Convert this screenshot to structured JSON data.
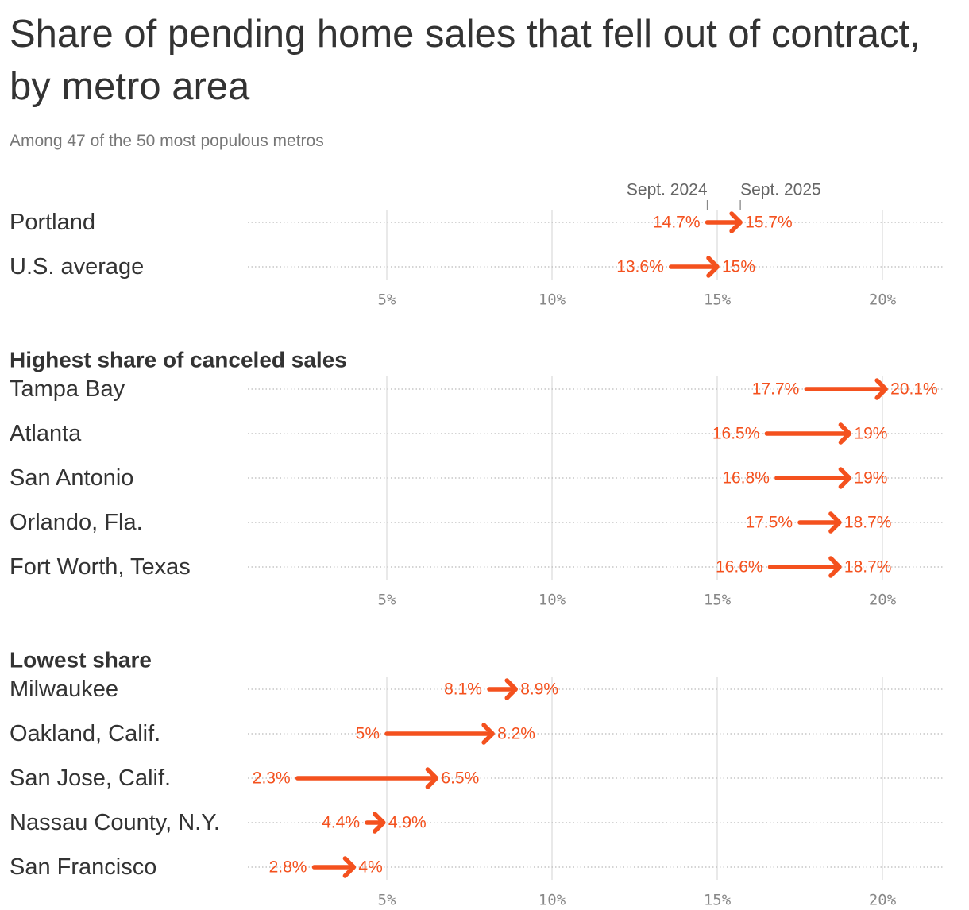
{
  "title": "Share of pending home sales that fell out of contract, by metro area",
  "subtitle": "Among 47 of the 50 most populous metros",
  "colors": {
    "accent": "#f4511e",
    "text": "#333333",
    "muted": "#888888",
    "grid": "#dddddd"
  },
  "chart_data": {
    "type": "arrow",
    "value_unit": "%",
    "xlim": [
      0.8,
      21.8
    ],
    "ticks": [
      5,
      10,
      15,
      20
    ],
    "tick_labels": [
      "5%",
      "10%",
      "15%",
      "20%"
    ],
    "series": [
      {
        "name": "Sept. 2024",
        "role": "start"
      },
      {
        "name": "Sept. 2025",
        "role": "end"
      }
    ],
    "legend": "top, annotated above Portland",
    "sections": [
      {
        "heading": "",
        "rows": [
          {
            "label": "Portland",
            "start": 14.7,
            "end": 15.7,
            "start_label": "14.7%",
            "end_label": "15.7%"
          },
          {
            "label": "U.S. average",
            "start": 13.6,
            "end": 15.0,
            "start_label": "13.6%",
            "end_label": "15%"
          }
        ]
      },
      {
        "heading": "Highest share of canceled sales",
        "rows": [
          {
            "label": "Tampa Bay",
            "start": 17.7,
            "end": 20.1,
            "start_label": "17.7%",
            "end_label": "20.1%"
          },
          {
            "label": "Atlanta",
            "start": 16.5,
            "end": 19.0,
            "start_label": "16.5%",
            "end_label": "19%"
          },
          {
            "label": "San Antonio",
            "start": 16.8,
            "end": 19.0,
            "start_label": "16.8%",
            "end_label": "19%"
          },
          {
            "label": "Orlando, Fla.",
            "start": 17.5,
            "end": 18.7,
            "start_label": "17.5%",
            "end_label": "18.7%"
          },
          {
            "label": "Fort Worth, Texas",
            "start": 16.6,
            "end": 18.7,
            "start_label": "16.6%",
            "end_label": "18.7%"
          }
        ]
      },
      {
        "heading": "Lowest share",
        "rows": [
          {
            "label": "Milwaukee",
            "start": 8.1,
            "end": 8.9,
            "start_label": "8.1%",
            "end_label": "8.9%"
          },
          {
            "label": "Oakland, Calif.",
            "start": 5.0,
            "end": 8.2,
            "start_label": "5%",
            "end_label": "8.2%"
          },
          {
            "label": "San Jose, Calif.",
            "start": 2.3,
            "end": 6.5,
            "start_label": "2.3%",
            "end_label": "6.5%"
          },
          {
            "label": "Nassau County, N.Y.",
            "start": 4.4,
            "end": 4.9,
            "start_label": "4.4%",
            "end_label": "4.9%"
          },
          {
            "label": "San Francisco",
            "start": 2.8,
            "end": 4.0,
            "start_label": "2.8%",
            "end_label": "4%"
          }
        ]
      }
    ]
  }
}
